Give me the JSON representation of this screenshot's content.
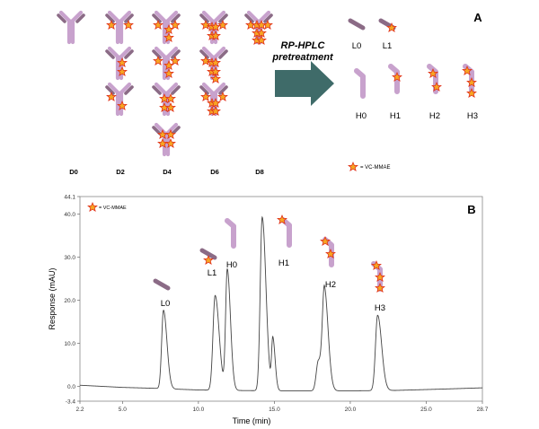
{
  "panel_a": {
    "panel_letter": "A",
    "arrow_label_line1": "RP-HPLC",
    "arrow_label_line2": "pretreatment",
    "dar_labels": [
      "D0",
      "D2",
      "D4",
      "D6",
      "D8"
    ],
    "light_chain_labels": [
      "L0",
      "L1"
    ],
    "heavy_chain_labels": [
      "H0",
      "H1",
      "H2",
      "H3"
    ],
    "legend_text": "= VC-MMAE",
    "colors": {
      "light_chain": "#8b6b86",
      "heavy_chain": "#c8a2cd",
      "drug_star": "#f6a623",
      "drug_star_outline": "#e0321c",
      "arrow": "#3f6b69"
    }
  },
  "panel_b": {
    "panel_letter": "B",
    "legend_text": "= VC-MMAE",
    "colors": {
      "trace": "#444444"
    }
  },
  "chart_data": {
    "type": "line",
    "xlabel": "Time (min)",
    "ylabel": "Response (mAU)",
    "xlim": [
      2.2,
      28.7
    ],
    "ylim": [
      -3.4,
      44.1
    ],
    "x_ticks": [
      2.2,
      5.0,
      10.0,
      15.0,
      20.0,
      25.0,
      28.7
    ],
    "x_tick_labels": [
      "2.2",
      "5.0",
      "10.0",
      "15.0",
      "20.0",
      "25.0",
      "28.7"
    ],
    "y_ticks": [
      -3.4,
      0.0,
      10.0,
      20.0,
      30.0,
      40.0,
      44.1
    ],
    "y_tick_labels": [
      "-3.4",
      "0.0",
      "10.0",
      "20.0",
      "30.0",
      "40.0",
      "44.1"
    ],
    "grid": false,
    "series": [
      {
        "baseline": [
          [
            2.2,
            0.3
          ],
          [
            5.0,
            -0.2
          ],
          [
            7.0,
            -0.4
          ],
          [
            10.0,
            -0.8
          ],
          [
            12.0,
            -0.9
          ],
          [
            15.0,
            -1.0
          ],
          [
            18.0,
            -1.0
          ],
          [
            20.0,
            -1.0
          ],
          [
            23.0,
            -0.9
          ],
          [
            26.0,
            -0.6
          ],
          [
            28.7,
            -0.3
          ]
        ],
        "peaks": [
          {
            "label": "L0",
            "rt": 7.7,
            "height": 18.2,
            "width": 0.12
          },
          {
            "label": "L1",
            "rt": 11.1,
            "height": 22.0,
            "width": 0.14
          },
          {
            "label": "H0",
            "rt": 11.9,
            "height": 28.0,
            "width": 0.11
          },
          {
            "rt": 14.2,
            "height": 40.3,
            "width": 0.13
          },
          {
            "rt": 14.9,
            "height": 11.9,
            "width": 0.08
          },
          {
            "rt": 17.9,
            "height": 7.0,
            "width": 0.14
          },
          {
            "label": "H2",
            "rt": 18.3,
            "height": 22.2,
            "width": 0.13
          },
          {
            "label": "H3",
            "rt": 21.8,
            "height": 17.5,
            "width": 0.14
          }
        ]
      }
    ],
    "peak_annotations": [
      "L0",
      "L1",
      "H0",
      "H1",
      "H2",
      "H3"
    ]
  }
}
